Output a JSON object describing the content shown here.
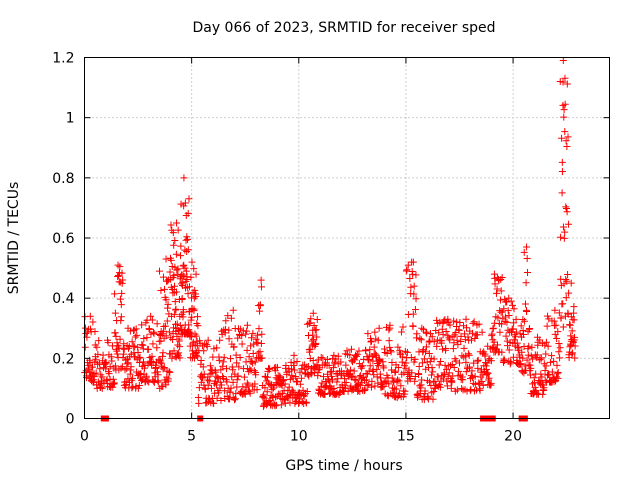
{
  "chart_data": {
    "type": "scatter",
    "title": "Day 066 of 2023, SRMTID for receiver sped",
    "xlabel": "GPS time / hours",
    "ylabel": "SRMTID / TECUs",
    "xlim": [
      0,
      24.5
    ],
    "ylim": [
      0,
      1.2
    ],
    "xticks": [
      "0",
      "5",
      "10",
      "15",
      "20"
    ],
    "yticks": [
      "0",
      "0.2",
      "0.4",
      "0.6",
      "0.8",
      "1",
      "1.2"
    ],
    "grid": true,
    "marker": "plus",
    "color": "#ff0000",
    "zero_markers_x": [
      0.9,
      1.0,
      5.4,
      18.6,
      18.8,
      19.05,
      20.4,
      20.55
    ],
    "series": [
      {
        "name": "SRMTID",
        "segments": [
          {
            "x0": 0.0,
            "x1": 0.55,
            "n": 40,
            "lo": 0.12,
            "hi": 0.34
          },
          {
            "x0": 0.55,
            "x1": 1.4,
            "n": 50,
            "lo": 0.1,
            "hi": 0.26
          },
          {
            "x0": 1.4,
            "x1": 1.8,
            "n": 35,
            "lo": 0.16,
            "hi": 0.51
          },
          {
            "x0": 1.8,
            "x1": 2.6,
            "n": 55,
            "lo": 0.1,
            "hi": 0.3
          },
          {
            "x0": 2.6,
            "x1": 3.5,
            "n": 60,
            "lo": 0.12,
            "hi": 0.34
          },
          {
            "x0": 3.5,
            "x1": 4.0,
            "n": 45,
            "lo": 0.1,
            "hi": 0.53
          },
          {
            "x0": 4.0,
            "x1": 4.5,
            "n": 60,
            "lo": 0.2,
            "hi": 0.65
          },
          {
            "x0": 4.5,
            "x1": 4.9,
            "n": 55,
            "lo": 0.28,
            "hi": 0.8
          },
          {
            "x0": 4.9,
            "x1": 5.3,
            "n": 40,
            "lo": 0.2,
            "hi": 0.52
          },
          {
            "x0": 5.3,
            "x1": 6.3,
            "n": 60,
            "lo": 0.05,
            "hi": 0.26
          },
          {
            "x0": 6.3,
            "x1": 7.2,
            "n": 55,
            "lo": 0.06,
            "hi": 0.36
          },
          {
            "x0": 7.2,
            "x1": 8.1,
            "n": 55,
            "lo": 0.08,
            "hi": 0.31
          },
          {
            "x0": 8.1,
            "x1": 8.3,
            "n": 15,
            "lo": 0.2,
            "hi": 0.46
          },
          {
            "x0": 8.3,
            "x1": 9.3,
            "n": 70,
            "lo": 0.04,
            "hi": 0.17
          },
          {
            "x0": 9.3,
            "x1": 10.4,
            "n": 70,
            "lo": 0.05,
            "hi": 0.21
          },
          {
            "x0": 10.4,
            "x1": 10.9,
            "n": 40,
            "lo": 0.14,
            "hi": 0.35
          },
          {
            "x0": 10.9,
            "x1": 12.0,
            "n": 70,
            "lo": 0.08,
            "hi": 0.21
          },
          {
            "x0": 12.0,
            "x1": 13.2,
            "n": 75,
            "lo": 0.09,
            "hi": 0.23
          },
          {
            "x0": 13.2,
            "x1": 14.0,
            "n": 50,
            "lo": 0.1,
            "hi": 0.3
          },
          {
            "x0": 14.0,
            "x1": 15.0,
            "n": 60,
            "lo": 0.07,
            "hi": 0.31
          },
          {
            "x0": 15.0,
            "x1": 15.5,
            "n": 35,
            "lo": 0.12,
            "hi": 0.52
          },
          {
            "x0": 15.5,
            "x1": 16.3,
            "n": 55,
            "lo": 0.06,
            "hi": 0.3
          },
          {
            "x0": 16.3,
            "x1": 17.2,
            "n": 60,
            "lo": 0.1,
            "hi": 0.33
          },
          {
            "x0": 17.2,
            "x1": 18.6,
            "n": 85,
            "lo": 0.09,
            "hi": 0.33
          },
          {
            "x0": 18.6,
            "x1": 19.0,
            "n": 25,
            "lo": 0.11,
            "hi": 0.24
          },
          {
            "x0": 19.0,
            "x1": 19.5,
            "n": 35,
            "lo": 0.22,
            "hi": 0.48
          },
          {
            "x0": 19.5,
            "x1": 20.4,
            "n": 60,
            "lo": 0.18,
            "hi": 0.4
          },
          {
            "x0": 20.4,
            "x1": 20.8,
            "n": 30,
            "lo": 0.15,
            "hi": 0.57
          },
          {
            "x0": 20.8,
            "x1": 21.5,
            "n": 45,
            "lo": 0.08,
            "hi": 0.27
          },
          {
            "x0": 21.5,
            "x1": 22.2,
            "n": 45,
            "lo": 0.12,
            "hi": 0.36
          },
          {
            "x0": 22.2,
            "x1": 22.6,
            "n": 40,
            "lo": 0.3,
            "hi": 1.19
          },
          {
            "x0": 22.6,
            "x1": 22.9,
            "n": 25,
            "lo": 0.2,
            "hi": 0.45
          }
        ]
      }
    ]
  }
}
